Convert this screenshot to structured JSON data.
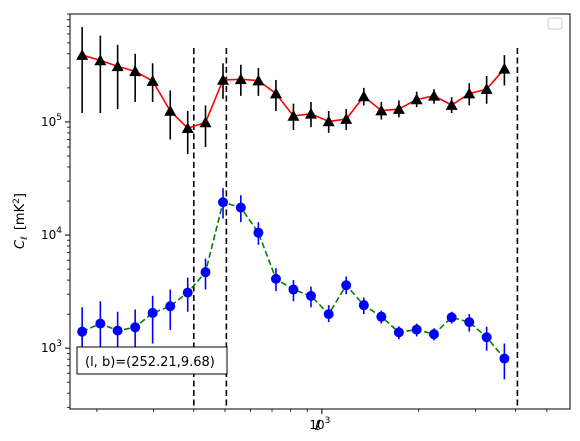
{
  "chart_data": {
    "type": "scatter",
    "title": "",
    "xlabel": "ℓ",
    "ylabel_main": "C",
    "ylabel_sub": "ℓ",
    "ylabel_unit": "[mK",
    "ylabel_unit_sup": "2",
    "ylabel_unit_close": "]",
    "xscale": "log",
    "yscale": "log",
    "xlim": [
      165,
      5900
    ],
    "ylim": [
      290,
      900000
    ],
    "x_ticks": [
      {
        "value": 1000,
        "base": "10",
        "exp": "3"
      }
    ],
    "y_ticks": [
      {
        "value": 1000,
        "base": "10",
        "exp": "3"
      },
      {
        "value": 10000,
        "base": "10",
        "exp": "4"
      },
      {
        "value": 100000,
        "base": "10",
        "exp": "5"
      }
    ],
    "legend": "top-right (empty)",
    "annotation": {
      "text": "(l, b)=(252.21,9.68)",
      "position": "bottom-left"
    },
    "vlines": [
      400,
      505,
      4050
    ],
    "vline_color": "#000000",
    "series": [
      {
        "marker": "triangle",
        "color": "#000000",
        "line_color": "#ff0000",
        "line_style": "solid",
        "points": [
          {
            "x": 180,
            "y": 390000,
            "lo": 120000,
            "hi": 690000
          },
          {
            "x": 205,
            "y": 350000,
            "lo": 120000,
            "hi": 580000
          },
          {
            "x": 232,
            "y": 310000,
            "lo": 130000,
            "hi": 480000
          },
          {
            "x": 263,
            "y": 280000,
            "lo": 150000,
            "hi": 400000
          },
          {
            "x": 298,
            "y": 230000,
            "lo": 150000,
            "hi": 330000
          },
          {
            "x": 338,
            "y": 125000,
            "lo": 70000,
            "hi": 190000
          },
          {
            "x": 383,
            "y": 88000,
            "lo": 52000,
            "hi": 125000
          },
          {
            "x": 435,
            "y": 99000,
            "lo": 60000,
            "hi": 140000
          },
          {
            "x": 493,
            "y": 235000,
            "lo": 160000,
            "hi": 330000
          },
          {
            "x": 560,
            "y": 238000,
            "lo": 170000,
            "hi": 320000
          },
          {
            "x": 635,
            "y": 232000,
            "lo": 170000,
            "hi": 300000
          },
          {
            "x": 720,
            "y": 178000,
            "lo": 125000,
            "hi": 235000
          },
          {
            "x": 816,
            "y": 113000,
            "lo": 85000,
            "hi": 145000
          },
          {
            "x": 925,
            "y": 118000,
            "lo": 90000,
            "hi": 150000
          },
          {
            "x": 1050,
            "y": 101000,
            "lo": 80000,
            "hi": 125000
          },
          {
            "x": 1190,
            "y": 106000,
            "lo": 85000,
            "hi": 130000
          },
          {
            "x": 1350,
            "y": 168000,
            "lo": 140000,
            "hi": 200000
          },
          {
            "x": 1530,
            "y": 126000,
            "lo": 105000,
            "hi": 150000
          },
          {
            "x": 1735,
            "y": 130000,
            "lo": 110000,
            "hi": 155000
          },
          {
            "x": 1970,
            "y": 158000,
            "lo": 135000,
            "hi": 185000
          },
          {
            "x": 2230,
            "y": 170000,
            "lo": 145000,
            "hi": 195000
          },
          {
            "x": 2530,
            "y": 141000,
            "lo": 120000,
            "hi": 165000
          },
          {
            "x": 2870,
            "y": 178000,
            "lo": 140000,
            "hi": 220000
          },
          {
            "x": 3250,
            "y": 195000,
            "lo": 145000,
            "hi": 255000
          },
          {
            "x": 3690,
            "y": 295000,
            "lo": 210000,
            "hi": 390000
          }
        ]
      },
      {
        "marker": "circle",
        "color": "#0000ff",
        "line_color": "#008000",
        "line_style": "dashed",
        "points": [
          {
            "x": 180,
            "y": 1400,
            "lo": 700,
            "hi": 2300
          },
          {
            "x": 205,
            "y": 1650,
            "lo": 800,
            "hi": 2600
          },
          {
            "x": 232,
            "y": 1430,
            "lo": 750,
            "hi": 2100
          },
          {
            "x": 263,
            "y": 1530,
            "lo": 800,
            "hi": 2200
          },
          {
            "x": 298,
            "y": 2050,
            "lo": 1100,
            "hi": 2900
          },
          {
            "x": 338,
            "y": 2350,
            "lo": 1450,
            "hi": 3300
          },
          {
            "x": 383,
            "y": 3100,
            "lo": 2100,
            "hi": 4200
          },
          {
            "x": 435,
            "y": 4700,
            "lo": 3300,
            "hi": 6200
          },
          {
            "x": 493,
            "y": 19500,
            "lo": 14000,
            "hi": 26000
          },
          {
            "x": 560,
            "y": 17500,
            "lo": 13000,
            "hi": 22500
          },
          {
            "x": 635,
            "y": 10500,
            "lo": 8200,
            "hi": 13000
          },
          {
            "x": 720,
            "y": 4100,
            "lo": 3200,
            "hi": 5100
          },
          {
            "x": 816,
            "y": 3300,
            "lo": 2600,
            "hi": 4000
          },
          {
            "x": 925,
            "y": 2900,
            "lo": 2300,
            "hi": 3500
          },
          {
            "x": 1050,
            "y": 2000,
            "lo": 1700,
            "hi": 2400
          },
          {
            "x": 1190,
            "y": 3600,
            "lo": 3000,
            "hi": 4300
          },
          {
            "x": 1350,
            "y": 2400,
            "lo": 2000,
            "hi": 2800
          },
          {
            "x": 1530,
            "y": 1900,
            "lo": 1650,
            "hi": 2150
          },
          {
            "x": 1735,
            "y": 1380,
            "lo": 1200,
            "hi": 1560
          },
          {
            "x": 1970,
            "y": 1460,
            "lo": 1270,
            "hi": 1650
          },
          {
            "x": 2230,
            "y": 1330,
            "lo": 1170,
            "hi": 1500
          },
          {
            "x": 2530,
            "y": 1870,
            "lo": 1650,
            "hi": 2100
          },
          {
            "x": 2870,
            "y": 1700,
            "lo": 1400,
            "hi": 2000
          },
          {
            "x": 3250,
            "y": 1250,
            "lo": 950,
            "hi": 1550
          },
          {
            "x": 3690,
            "y": 810,
            "lo": 530,
            "hi": 1100
          }
        ]
      }
    ]
  }
}
